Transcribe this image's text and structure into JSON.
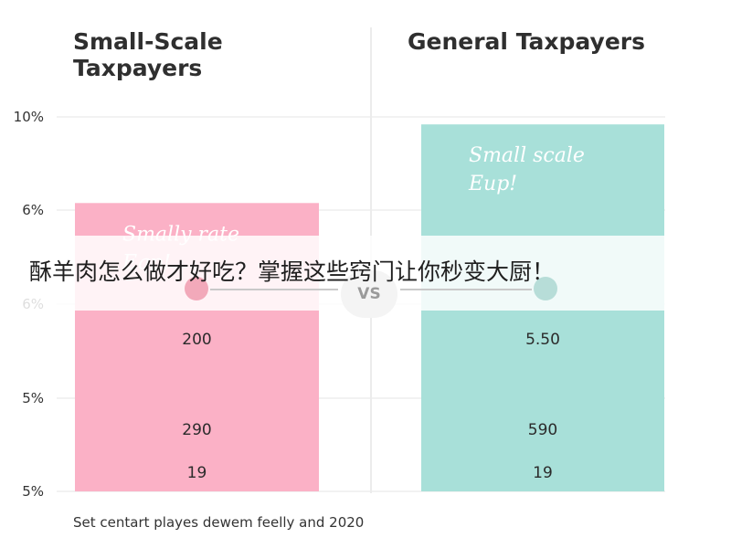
{
  "headers": {
    "left": "Small-Scale Taxpayers",
    "right": "General Taxpayers"
  },
  "overlay": {
    "caption": "酥羊肉怎么做才好吃？掌握这些窍门让你秒变大厨！",
    "vs": "VS"
  },
  "footer": "Set centart playes dewem feelly and 2020",
  "colors": {
    "left_bar": "#fbb1c6",
    "right_bar": "#a8e0d9",
    "grid": "#e6e6e6"
  },
  "chart_data": {
    "type": "bar",
    "title": "",
    "y_tick_labels": [
      "10%",
      "6%",
      "6%",
      "5%",
      "5%"
    ],
    "categories": [
      "Small-Scale Taxpayers",
      "General Taxpayers"
    ],
    "bar_labels": [
      "Smally rate Eqp!",
      "Small scale Eup!"
    ],
    "relative_heights": [
      0.77,
      0.98
    ],
    "rows": [
      {
        "left": "200",
        "right": "5.50"
      },
      {
        "left": "290",
        "right": "590"
      },
      {
        "left": "19",
        "right": "19"
      }
    ]
  }
}
